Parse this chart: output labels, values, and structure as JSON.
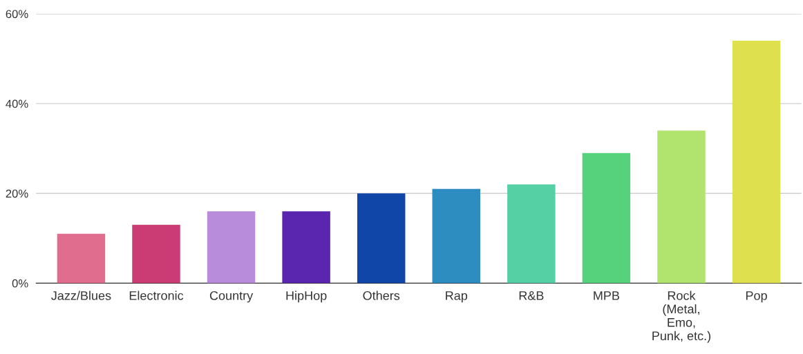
{
  "chart_data": {
    "type": "bar",
    "categories": [
      "Jazz/Blues",
      "Electronic",
      "Country",
      "HipHop",
      "Others",
      "Rap",
      "R&B",
      "MPB",
      "Rock\n(Metal,\nEmo,\nPunk, etc.)",
      "Pop"
    ],
    "values": [
      11,
      13,
      16,
      16,
      20,
      21,
      22,
      29,
      34,
      54
    ],
    "colors": [
      "#e06c8e",
      "#cc3c74",
      "#b98bdb",
      "#5a26b0",
      "#1046a8",
      "#2e8dc0",
      "#55d0a4",
      "#57d27c",
      "#b0e46e",
      "#dee04e"
    ],
    "ylim": [
      0,
      60
    ],
    "yticks": [
      {
        "value": 0,
        "label": "0%"
      },
      {
        "value": 20,
        "label": "20%"
      },
      {
        "value": 40,
        "label": "40%"
      },
      {
        "value": 60,
        "label": "60%"
      }
    ],
    "grid": "y",
    "legend": false
  }
}
